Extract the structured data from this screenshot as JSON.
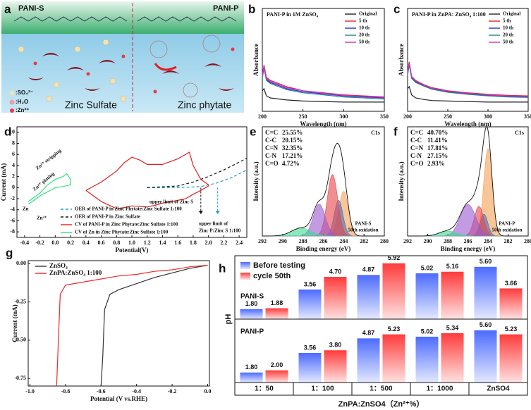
{
  "schematic": {
    "panel_label": "a",
    "left_title": "PANI-S",
    "right_title": "PANI-P",
    "legend": [
      ":SO₄²⁻",
      ":H₂O",
      ":Zn²⁺"
    ],
    "left_caption": "Zinc Sulfate",
    "right_caption": "Zinc phytate"
  },
  "chart_data": [
    {
      "type": "line",
      "panel_label": "b",
      "title": "PANI-P in 1M ZnSO₄",
      "xlabel": "Wavelength (nm)",
      "ylabel": "Absorbance",
      "xlim": [
        200,
        350
      ],
      "ylim": [
        0,
        1
      ],
      "xticks": [
        200,
        250,
        300,
        350
      ],
      "legend": "upper right",
      "x": [
        200,
        202,
        205,
        210,
        220,
        230,
        250,
        275,
        300,
        325,
        350
      ],
      "series": [
        {
          "name": "Original",
          "color": "#222222",
          "values": [
            0.2,
            0.22,
            0.15,
            0.13,
            0.12,
            0.11,
            0.1,
            0.095,
            0.09,
            0.09,
            0.09
          ]
        },
        {
          "name": "5 th",
          "color": "#e8202a",
          "values": [
            0.35,
            0.45,
            0.33,
            0.3,
            0.27,
            0.24,
            0.2,
            0.18,
            0.16,
            0.15,
            0.14
          ]
        },
        {
          "name": "10 th",
          "color": "#2a2ad8",
          "values": [
            0.33,
            0.43,
            0.31,
            0.28,
            0.25,
            0.22,
            0.19,
            0.17,
            0.15,
            0.14,
            0.13
          ]
        },
        {
          "name": "20 th",
          "color": "#1a8a8a",
          "values": [
            0.32,
            0.42,
            0.3,
            0.27,
            0.24,
            0.21,
            0.18,
            0.16,
            0.14,
            0.13,
            0.12
          ]
        },
        {
          "name": "50 th",
          "color": "#c832c8",
          "values": [
            0.34,
            0.44,
            0.32,
            0.29,
            0.26,
            0.23,
            0.2,
            0.175,
            0.155,
            0.145,
            0.135
          ]
        }
      ]
    },
    {
      "type": "line",
      "panel_label": "c",
      "title": "PANI-P in ZnPA: ZnSO₄ 1:100",
      "xlabel": "Wavelength (nm)",
      "ylabel": "Absorbance",
      "xlim": [
        200,
        350
      ],
      "ylim": [
        0,
        1
      ],
      "xticks": [
        200,
        250,
        300,
        350
      ],
      "legend": "upper right",
      "x": [
        200,
        202,
        205,
        210,
        220,
        230,
        250,
        275,
        300,
        325,
        350
      ],
      "series": [
        {
          "name": "Original",
          "color": "#222222",
          "values": [
            0.22,
            0.24,
            0.16,
            0.13,
            0.115,
            0.105,
            0.1,
            0.095,
            0.09,
            0.09,
            0.09
          ]
        },
        {
          "name": "5 th",
          "color": "#e8202a",
          "values": [
            0.38,
            0.48,
            0.34,
            0.3,
            0.26,
            0.23,
            0.2,
            0.18,
            0.165,
            0.155,
            0.15
          ]
        },
        {
          "name": "10 th",
          "color": "#2a2ad8",
          "values": [
            0.36,
            0.46,
            0.33,
            0.29,
            0.25,
            0.22,
            0.19,
            0.17,
            0.155,
            0.145,
            0.14
          ]
        },
        {
          "name": "20 th",
          "color": "#1a8a8a",
          "values": [
            0.35,
            0.45,
            0.32,
            0.28,
            0.245,
            0.215,
            0.185,
            0.165,
            0.15,
            0.14,
            0.135
          ]
        },
        {
          "name": "50 th",
          "color": "#c832c8",
          "values": [
            0.37,
            0.47,
            0.335,
            0.295,
            0.255,
            0.225,
            0.195,
            0.175,
            0.16,
            0.15,
            0.145
          ]
        }
      ]
    },
    {
      "type": "line",
      "panel_label": "d",
      "xlabel": "Potential(V)",
      "ylabel": "Current (mA)",
      "xlim": [
        -0.5,
        2.5
      ],
      "ylim": [
        -9,
        11
      ],
      "xticks": [
        -0.4,
        -0.2,
        {
          "value": 0,
          "label": "0.0"
        },
        0.2,
        0.4,
        0.6,
        0.8,
        {
          "value": 1,
          "label": "1.0"
        },
        1.2,
        1.4,
        1.6,
        1.8,
        {
          "value": 2,
          "label": "2.0"
        },
        2.2,
        2.4
      ],
      "yticks": [
        -8,
        -6,
        -4,
        -2,
        0,
        2,
        4,
        6,
        8,
        10
      ],
      "legend": "lower left",
      "series": [
        {
          "name": "OER of PANI-P in Zinc Phytate:Zinc Sulfate 1:100",
          "color": "#1aa3b8",
          "dash": true,
          "x": [
            1.2,
            1.6,
            1.9,
            2.1,
            2.3,
            2.5
          ],
          "values": [
            0,
            0,
            0.2,
            0.8,
            1.8,
            3.2
          ]
        },
        {
          "name": "OER of PANI-P in Zinc Sulfate",
          "color": "#111111",
          "dash": true,
          "x": [
            1.2,
            1.6,
            1.8,
            2.0,
            2.2,
            2.4,
            2.5
          ],
          "values": [
            0,
            0.3,
            1,
            2,
            3.2,
            4.6,
            5.3
          ]
        },
        {
          "name": "CV of PANI-P in Zinc Phytate:Zinc Sulfate 1:100",
          "color": "#e02020",
          "x": [
            0.4,
            0.6,
            0.8,
            0.9,
            1.0,
            1.1,
            1.2,
            1.4,
            1.6,
            1.75,
            1.8,
            1.9,
            2.0,
            2.0,
            1.9,
            1.8,
            1.7,
            1.6,
            1.4,
            1.3,
            1.2,
            1.0,
            0.9,
            0.8,
            0.6,
            0.5,
            0.4
          ],
          "values": [
            -0.5,
            1,
            3,
            4.5,
            5.5,
            5,
            4.2,
            4.2,
            5.2,
            6.4,
            4,
            1.5,
            0.5,
            0.3,
            -0.5,
            -1.2,
            -2,
            -2.3,
            -2.8,
            -3.2,
            -3.5,
            -3.3,
            -3.6,
            -3.8,
            -2.5,
            -1.5,
            -0.5
          ]
        },
        {
          "name": "CV of Zn in Zinc Phytate:Zinc Sulfate 1:100",
          "color": "#2ee07a",
          "x": [
            -0.35,
            -0.2,
            -0.1,
            0.0,
            0.1,
            0.15,
            0.2,
            0.2,
            0.1,
            0.0,
            -0.2,
            -0.35
          ],
          "values": [
            -2.5,
            -1,
            0.5,
            1.5,
            2,
            2.5,
            1.5,
            0.5,
            0.2,
            0,
            -1.5,
            -3
          ]
        }
      ],
      "annotations": [
        "Zn²⁺ stripping",
        "Zn²⁺ plating",
        "upper limit of Zinc S",
        "upper limit of",
        "Zinc P:Zinc S 1:100",
        "Zn",
        "Zn²⁺"
      ],
      "limits": [
        {
          "value": 1.9,
          "color": "#111111"
        },
        {
          "value": 2.12,
          "color": "#1aa3b8"
        }
      ]
    },
    {
      "type": "xps",
      "panel_label": "e",
      "title": "C1s",
      "xlabel": "Binding energy (eV)",
      "ylabel": "Intensity (a.u.)",
      "xlim": [
        292,
        280
      ],
      "ylim": [
        0,
        1.1
      ],
      "xticks": [
        292,
        290,
        288,
        286,
        284,
        282,
        280
      ],
      "legend": "upper left",
      "components": [
        {
          "name": "C=C",
          "color": "#f5a055",
          "percent": "25.55%",
          "center": 284.0,
          "height": 0.45,
          "fwhm": 1.1
        },
        {
          "name": "C-C",
          "color": "#3d6fc0",
          "percent": "20.15%",
          "center": 284.5,
          "height": 0.36,
          "fwhm": 1.0
        },
        {
          "name": "C=N",
          "color": "#e8434a",
          "percent": "32.35%",
          "center": 285.1,
          "height": 0.62,
          "fwhm": 1.2
        },
        {
          "name": "C-N",
          "color": "#9b59d0",
          "percent": "17.21%",
          "center": 286.4,
          "height": 0.32,
          "fwhm": 1.4
        },
        {
          "name": "C=O",
          "color": "#40d890",
          "percent": "4.72%",
          "center": 288.2,
          "height": 0.08,
          "fwhm": 2.2
        }
      ],
      "annotations": [
        "PANI-S",
        "50th oxidation"
      ]
    },
    {
      "type": "xps",
      "panel_label": "f",
      "title": "C1s",
      "xlabel": "Binding energy (eV)",
      "ylabel": "Intensity (a.u.)",
      "xlim": [
        292,
        280
      ],
      "ylim": [
        0,
        1.1
      ],
      "xticks": [
        292,
        290,
        288,
        286,
        284,
        282,
        280
      ],
      "legend": "upper left",
      "components": [
        {
          "name": "C=C",
          "color": "#f5a055",
          "percent": "40.70%",
          "center": 284.0,
          "height": 0.88,
          "fwhm": 1.0
        },
        {
          "name": "C-C",
          "color": "#3d6fc0",
          "percent": "11.41%",
          "center": 284.4,
          "height": 0.22,
          "fwhm": 0.9
        },
        {
          "name": "C=N",
          "color": "#e8434a",
          "percent": "17.81%",
          "center": 284.9,
          "height": 0.3,
          "fwhm": 1.1
        },
        {
          "name": "C-N",
          "color": "#9b59d0",
          "percent": "27.15%",
          "center": 286.0,
          "height": 0.32,
          "fwhm": 1.8
        },
        {
          "name": "C=O",
          "color": "#40d890",
          "percent": "2.93%",
          "center": 288.0,
          "height": 0.05,
          "fwhm": 2.0
        }
      ],
      "annotations": [
        "PANI-P",
        "50th oxidation"
      ]
    },
    {
      "type": "line",
      "panel_label": "g",
      "xlabel": "Potential (V vs.RHE)",
      "ylabel": "Current (mA)",
      "xlim": [
        -1.01,
        0.01
      ],
      "ylim": [
        -0.8,
        0.02
      ],
      "xticks": [
        {
          "value": -1,
          "label": "-1.0"
        },
        -0.8,
        -0.6,
        -0.4,
        -0.2,
        {
          "value": 0,
          "label": "0.0"
        }
      ],
      "yticks": [
        {
          "value": 0,
          "label": "0.00"
        },
        -0.25,
        {
          "value": -0.5,
          "label": "-0.50"
        },
        -0.75
      ],
      "legend": "upper left",
      "series": [
        {
          "name": "ZnSO₄",
          "color": "#333333",
          "x": [
            -0.6,
            -0.59,
            -0.58,
            -0.55,
            -0.5,
            -0.4,
            -0.3,
            -0.2,
            -0.1,
            0.0
          ],
          "values": [
            -0.8,
            -0.6,
            -0.3,
            -0.2,
            -0.17,
            -0.13,
            -0.09,
            -0.06,
            -0.03,
            -0.01
          ]
        },
        {
          "name": "ZnPA:ZnSO₄ 1:100",
          "color": "#f02828",
          "x": [
            -0.85,
            -0.84,
            -0.83,
            -0.8,
            -0.7,
            -0.6,
            -0.5,
            -0.4,
            -0.3,
            -0.2,
            -0.1,
            0.0
          ],
          "values": [
            -0.8,
            -0.5,
            -0.2,
            -0.14,
            -0.12,
            -0.1,
            -0.08,
            -0.07,
            -0.05,
            -0.04,
            -0.02,
            -0.01
          ]
        }
      ]
    },
    {
      "type": "bar",
      "panel_label": "h",
      "xlabel": "ZnPA:ZnSO4（Zn²⁺%）",
      "ylabel": "pH",
      "categories": [
        "1：50",
        "1：100",
        "1：500",
        "1：1000",
        "ZnSO4"
      ],
      "ylim": [
        0.9,
        6.6
      ],
      "legend": "upper left",
      "series": [
        {
          "name": "Before testing",
          "color": "#4d6bff"
        },
        {
          "name": "cycle 50th",
          "color": "#ff3b3b"
        }
      ],
      "panels": [
        {
          "title": "PANI-S",
          "values": [
            [
              1.8,
              3.56,
              4.87,
              5.02,
              5.6
            ],
            [
              1.88,
              4.7,
              5.92,
              5.16,
              3.66
            ]
          ],
          "value_labels": [
            [
              "1.80",
              "3.56",
              "4.87",
              "5.02",
              "5.60"
            ],
            [
              "1.88",
              "4.70",
              "5.92",
              "5.16",
              "3.66"
            ]
          ]
        },
        {
          "title": "PANI-P",
          "values": [
            [
              1.8,
              3.56,
              4.87,
              5.02,
              5.6
            ],
            [
              2.0,
              3.8,
              5.23,
              5.34,
              5.23
            ]
          ],
          "value_labels": [
            [
              "1.80",
              "3.56",
              "4.87",
              "5.02",
              "5.60"
            ],
            [
              "2.00",
              "3.80",
              "5.23",
              "5.34",
              "5.23"
            ]
          ]
        }
      ]
    }
  ]
}
